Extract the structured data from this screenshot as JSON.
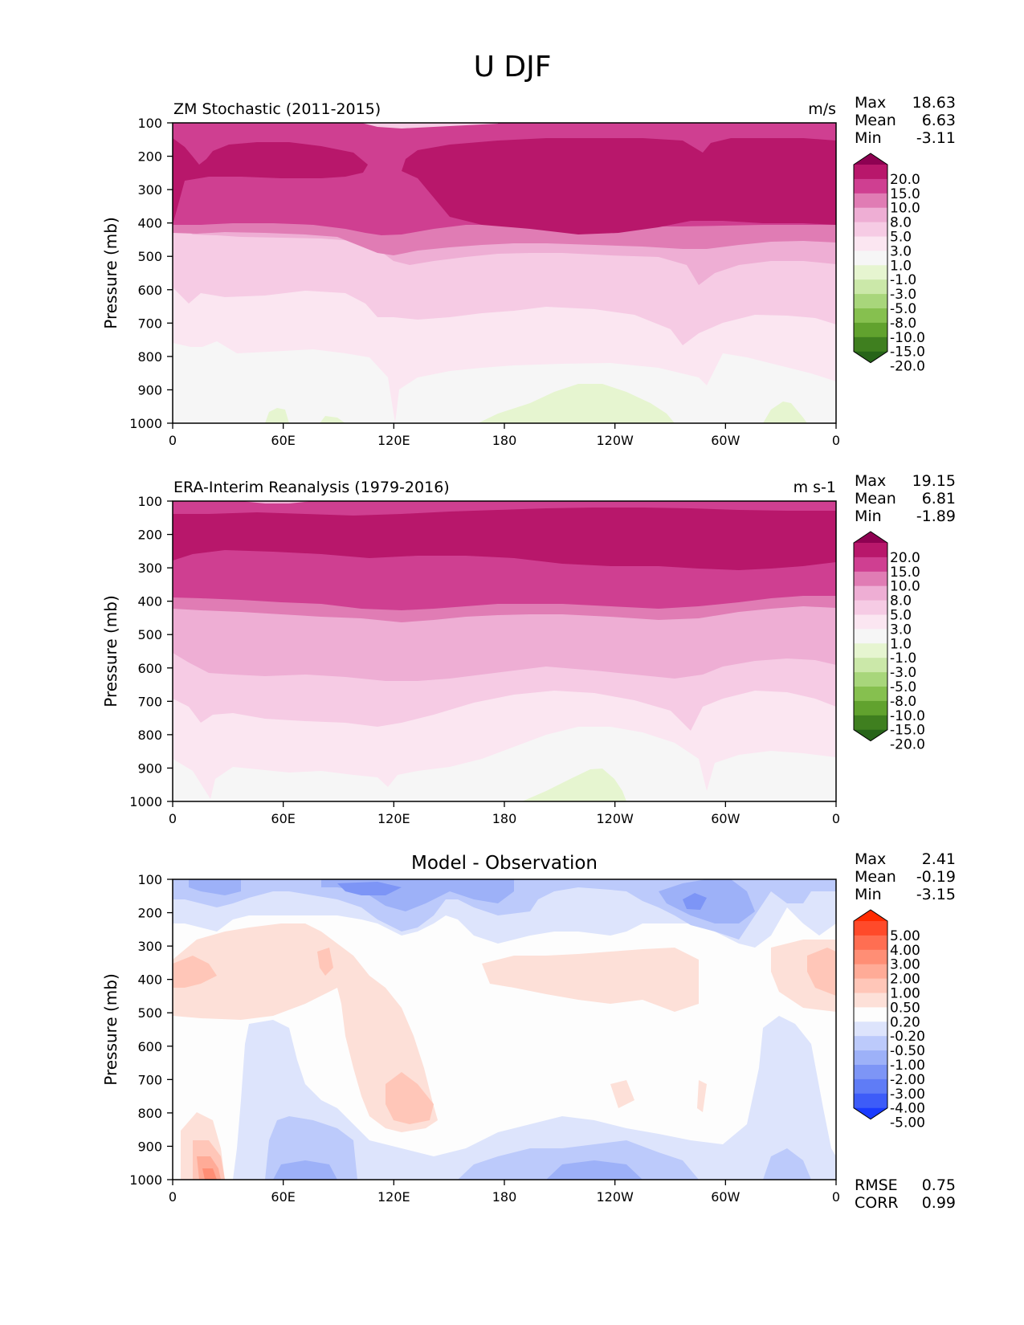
{
  "figure_title": "U DJF",
  "x_ticks": [
    "0",
    "60E",
    "120E",
    "180",
    "120W",
    "60W",
    "0"
  ],
  "y_ticks": [
    "100",
    "200",
    "300",
    "400",
    "500",
    "600",
    "700",
    "800",
    "900",
    "1000"
  ],
  "ylabel": "Pressure (mb)",
  "panels": [
    {
      "title_left": "ZM Stochastic (2011-2015)",
      "title_center": "",
      "units": "m/s",
      "stats": [
        {
          "label": "Max",
          "value": "18.63"
        },
        {
          "label": "Mean",
          "value": "6.63"
        },
        {
          "label": "Min",
          "value": "-3.11"
        }
      ],
      "colorbar": {
        "labels": [
          "20.0",
          "15.0",
          "10.0",
          "8.0",
          "5.0",
          "3.0",
          "1.0",
          "-1.0",
          "-3.0",
          "-5.0",
          "-8.0",
          "-10.0",
          "-15.0",
          "-20.0"
        ],
        "colors": [
          "#8e0152",
          "#b8176b",
          "#cf3f91",
          "#e07cb4",
          "#eeaed4",
          "#f6cbe4",
          "#fbe6f1",
          "#f6f6f6",
          "#e6f5d0",
          "#cbe8a9",
          "#a8d67b",
          "#86c04f",
          "#61a22e",
          "#3f7f1f",
          "#276419"
        ]
      },
      "extra_stats": []
    },
    {
      "title_left": "ERA-Interim Reanalysis (1979-2016)",
      "title_center": "",
      "units": "m s-1",
      "stats": [
        {
          "label": "Max",
          "value": "19.15"
        },
        {
          "label": "Mean",
          "value": "6.81"
        },
        {
          "label": "Min",
          "value": "-1.89"
        }
      ],
      "colorbar": {
        "labels": [
          "20.0",
          "15.0",
          "10.0",
          "8.0",
          "5.0",
          "3.0",
          "1.0",
          "-1.0",
          "-3.0",
          "-5.0",
          "-8.0",
          "-10.0",
          "-15.0",
          "-20.0"
        ],
        "colors": [
          "#8e0152",
          "#b8176b",
          "#cf3f91",
          "#e07cb4",
          "#eeaed4",
          "#f6cbe4",
          "#fbe6f1",
          "#f6f6f6",
          "#e6f5d0",
          "#cbe8a9",
          "#a8d67b",
          "#86c04f",
          "#61a22e",
          "#3f7f1f",
          "#276419"
        ]
      },
      "extra_stats": []
    },
    {
      "title_left": "",
      "title_center": "Model - Observation",
      "units": "",
      "stats": [
        {
          "label": "Max",
          "value": "2.41"
        },
        {
          "label": "Mean",
          "value": "-0.19"
        },
        {
          "label": "Min",
          "value": "-3.15"
        }
      ],
      "colorbar": {
        "labels": [
          "5.00",
          "4.00",
          "3.00",
          "2.00",
          "1.00",
          "0.50",
          "0.20",
          "-0.20",
          "-0.50",
          "-1.00",
          "-2.00",
          "-3.00",
          "-4.00",
          "-5.00"
        ],
        "colors": [
          "#ff2a00",
          "#ff4a2a",
          "#ff6e52",
          "#ff8e75",
          "#ffab97",
          "#ffc6b8",
          "#fde0d8",
          "#fdfdfd",
          "#dde4fc",
          "#bccafb",
          "#9db1f8",
          "#7d95f6",
          "#5f7cf6",
          "#3d5cf8",
          "#1a3bff"
        ]
      },
      "extra_stats": [
        {
          "label": "RMSE",
          "value": "0.75"
        },
        {
          "label": "CORR",
          "value": "0.99"
        }
      ]
    }
  ],
  "chart_data": [
    {
      "type": "heatmap",
      "title": "ZM Stochastic (2011-2015)",
      "units": "m/s",
      "x": [
        "0",
        "60E",
        "120E",
        "180",
        "120W",
        "60W",
        "0"
      ],
      "ylabel": "Pressure (mb)",
      "ylim": [
        1000,
        100
      ],
      "pressure_levels": [
        100,
        200,
        300,
        400,
        500,
        600,
        700,
        800,
        900,
        1000
      ],
      "contour_levels": [
        -20,
        -15,
        -10,
        -8,
        -5,
        -3,
        -1,
        1,
        3,
        5,
        8,
        10,
        15,
        20
      ],
      "band_boundaries": [
        {
          "level": 15,
          "pressure": [
            150,
            165,
            160,
            168,
            250,
            150,
            165,
            160,
            163,
            170,
            162,
            150,
            155
          ],
          "lower_pressure": [
            270,
            262,
            268,
            262,
            255,
            262,
            270,
            280,
            285,
            280,
            270,
            265,
            262
          ]
        },
        {
          "level": 10,
          "pressure": [
            400,
            400,
            402,
            410,
            420,
            415,
            410,
            405,
            405,
            410,
            408,
            405,
            400
          ]
        },
        {
          "level": 8,
          "pressure": [
            480,
            470,
            470,
            480,
            510,
            490,
            470,
            470,
            475,
            480,
            485,
            478,
            475
          ]
        },
        {
          "level": 5,
          "pressure": [
            600,
            620,
            630,
            620,
            680,
            660,
            630,
            620,
            625,
            650,
            640,
            620,
            620
          ]
        },
        {
          "level": 3,
          "pressure": [
            710,
            760,
            780,
            760,
            810,
            800,
            760,
            730,
            720,
            740,
            780,
            730,
            720
          ]
        },
        {
          "level": 1,
          "pressure": [
            830,
            1000,
            1000,
            870,
            880,
            920,
            880,
            850,
            850,
            870,
            880,
            860,
            860
          ]
        }
      ],
      "stats": {
        "max": 18.63,
        "mean": 6.63,
        "min": -3.11
      }
    },
    {
      "type": "heatmap",
      "title": "ERA-Interim Reanalysis (1979-2016)",
      "units": "m s-1",
      "x": [
        "0",
        "60E",
        "120E",
        "180",
        "120W",
        "60W",
        "0"
      ],
      "ylabel": "Pressure (mb)",
      "ylim": [
        1000,
        100
      ],
      "pressure_levels": [
        100,
        200,
        300,
        400,
        500,
        600,
        700,
        800,
        900,
        1000
      ],
      "contour_levels": [
        -20,
        -15,
        -10,
        -8,
        -5,
        -3,
        -1,
        1,
        3,
        5,
        8,
        10,
        15,
        20
      ],
      "band_boundaries": [
        {
          "level": 15,
          "pressure": [
            130,
            128,
            125,
            128,
            130,
            125,
            118,
            115,
            118,
            120,
            125,
            123,
            120
          ],
          "lower_pressure": [
            255,
            265,
            270,
            275,
            278,
            285,
            280,
            285,
            290,
            290,
            285,
            270,
            262
          ]
        },
        {
          "level": 10,
          "pressure": [
            380,
            385,
            395,
            405,
            420,
            415,
            410,
            405,
            405,
            405,
            410,
            400,
            385
          ]
        },
        {
          "level": 8,
          "pressure": [
            455,
            460,
            470,
            480,
            495,
            480,
            475,
            470,
            470,
            475,
            480,
            470,
            460
          ]
        },
        {
          "level": 5,
          "pressure": [
            570,
            590,
            610,
            600,
            620,
            610,
            600,
            590,
            595,
            605,
            610,
            595,
            570
          ]
        },
        {
          "level": 3,
          "pressure": [
            700,
            740,
            750,
            740,
            740,
            720,
            700,
            680,
            690,
            720,
            760,
            720,
            700
          ]
        },
        {
          "level": 1,
          "pressure": [
            880,
            960,
            900,
            880,
            920,
            900,
            860,
            800,
            800,
            860,
            920,
            860,
            880
          ]
        }
      ],
      "stats": {
        "max": 19.15,
        "mean": 6.81,
        "min": -1.89
      }
    },
    {
      "type": "heatmap",
      "title": "Model - Observation",
      "x": [
        "0",
        "60E",
        "120E",
        "180",
        "120W",
        "60W",
        "0"
      ],
      "ylabel": "Pressure (mb)",
      "ylim": [
        1000,
        100
      ],
      "pressure_levels": [
        100,
        200,
        300,
        400,
        500,
        600,
        700,
        800,
        900,
        1000
      ],
      "contour_levels": [
        -5,
        -4,
        -3,
        -2,
        -1,
        -0.5,
        -0.2,
        0.2,
        0.5,
        1,
        2,
        3,
        4,
        5
      ],
      "stats": {
        "max": 2.41,
        "mean": -0.19,
        "min": -3.15,
        "rmse": 0.75,
        "corr": 0.99
      }
    }
  ]
}
